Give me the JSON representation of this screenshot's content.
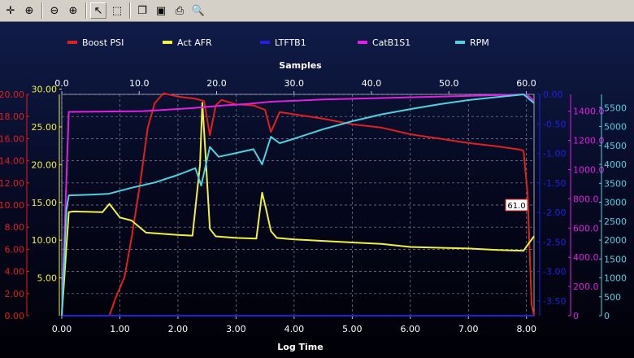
{
  "toolbar": {
    "buttons": [
      {
        "name": "pan-icon",
        "glyph": "✛"
      },
      {
        "name": "zoom-area-icon",
        "glyph": "⊕"
      },
      {
        "name": "zoom-out-icon",
        "glyph": "⊖"
      },
      {
        "name": "zoom-in-icon",
        "glyph": "⊕"
      },
      {
        "name": "pointer-icon",
        "glyph": "↖"
      },
      {
        "name": "select-box-icon",
        "glyph": "⬚"
      },
      {
        "name": "copy-icon",
        "glyph": "❐"
      },
      {
        "name": "save-icon",
        "glyph": "▣"
      },
      {
        "name": "print-icon",
        "glyph": "⎙"
      },
      {
        "name": "print-preview-icon",
        "glyph": "🔍"
      }
    ]
  },
  "chart_data": {
    "type": "line",
    "xlabel": "Log Time",
    "x2label": "Samples",
    "xlim": [
      0,
      8.13
    ],
    "x2lim": [
      0,
      61.0
    ],
    "xticks": [
      "0.00",
      "1.00",
      "2.00",
      "3.00",
      "4.00",
      "5.00",
      "6.00",
      "7.00",
      "8.00"
    ],
    "x2ticks": [
      "0.0",
      "10.0",
      "20.0",
      "30.0",
      "40.0",
      "50.0",
      "60.0"
    ],
    "cursor_label": "61.0",
    "grid": true,
    "legend_position": "top",
    "series": [
      {
        "name": "Boost PSI",
        "color": "#e02020",
        "ylim": [
          0,
          20
        ],
        "yticks": [
          "0.00",
          "2.00",
          "4.00",
          "6.00",
          "8.00",
          "10.00",
          "12.00",
          "14.00",
          "16.00",
          "18.00",
          "20.00"
        ],
        "points": [
          [
            0,
            0
          ],
          [
            0.82,
            0
          ],
          [
            0.92,
            1.5
          ],
          [
            1.08,
            3.5
          ],
          [
            1.2,
            7
          ],
          [
            1.35,
            12
          ],
          [
            1.48,
            17
          ],
          [
            1.6,
            19.2
          ],
          [
            1.75,
            20.1
          ],
          [
            2.0,
            19.8
          ],
          [
            2.3,
            19.6
          ],
          [
            2.45,
            19.4
          ],
          [
            2.55,
            16.3
          ],
          [
            2.65,
            19
          ],
          [
            2.75,
            19.5
          ],
          [
            3.0,
            19.1
          ],
          [
            3.3,
            19
          ],
          [
            3.5,
            18.6
          ],
          [
            3.6,
            16.6
          ],
          [
            3.75,
            18.4
          ],
          [
            4.0,
            18.2
          ],
          [
            4.5,
            17.8
          ],
          [
            5.0,
            17.3
          ],
          [
            5.5,
            17.0
          ],
          [
            6.0,
            16.4
          ],
          [
            6.5,
            16.0
          ],
          [
            7.0,
            15.6
          ],
          [
            7.5,
            15.3
          ],
          [
            7.9,
            15.0
          ],
          [
            7.95,
            14.9
          ],
          [
            8.02,
            11
          ],
          [
            8.06,
            5
          ],
          [
            8.09,
            1
          ],
          [
            8.13,
            0
          ]
        ]
      },
      {
        "name": "Act AFR",
        "color": "#f0f040",
        "ylim": [
          0,
          29.3
        ],
        "yticks": [
          "5.00",
          "10.00",
          "15.00",
          "20.00",
          "25.00",
          "30.00"
        ],
        "points": [
          [
            0,
            0
          ],
          [
            0.12,
            13.7
          ],
          [
            0.2,
            13.8
          ],
          [
            0.7,
            13.7
          ],
          [
            0.82,
            14.8
          ],
          [
            1.0,
            13
          ],
          [
            1.2,
            12.6
          ],
          [
            1.45,
            11
          ],
          [
            2.0,
            10.7
          ],
          [
            2.25,
            10.6
          ],
          [
            2.38,
            20
          ],
          [
            2.42,
            28.2
          ],
          [
            2.47,
            22
          ],
          [
            2.55,
            11.5
          ],
          [
            2.65,
            10.5
          ],
          [
            3.0,
            10.3
          ],
          [
            3.35,
            10.2
          ],
          [
            3.45,
            16.3
          ],
          [
            3.52,
            14
          ],
          [
            3.6,
            11.2
          ],
          [
            3.7,
            10.3
          ],
          [
            4.0,
            10.1
          ],
          [
            4.5,
            9.9
          ],
          [
            5.0,
            9.7
          ],
          [
            5.5,
            9.5
          ],
          [
            6.0,
            9.1
          ],
          [
            6.5,
            9.0
          ],
          [
            7.0,
            8.9
          ],
          [
            7.5,
            8.7
          ],
          [
            7.95,
            8.6
          ],
          [
            8.05,
            9.7
          ],
          [
            8.13,
            10.5
          ]
        ]
      },
      {
        "name": "LTFTB1",
        "color": "#2020e0",
        "ylim": [
          -3.75,
          0
        ],
        "yticks": [
          "0.00",
          "-0.50",
          "-1.00",
          "-1.50",
          "-2.00",
          "-2.50",
          "-3.00",
          "-3.50"
        ],
        "points": [
          [
            0,
            -3.75
          ],
          [
            8.13,
            -3.75
          ]
        ]
      },
      {
        "name": "CatB1S1",
        "color": "#e020e0",
        "ylim": [
          0,
          1515
        ],
        "yticks": [
          "0",
          "200.0",
          "400.0",
          "600.0",
          "800.0",
          "1000.0",
          "1200.0",
          "1400.0"
        ],
        "points": [
          [
            0,
            0
          ],
          [
            0.05,
            600
          ],
          [
            0.12,
            1395
          ],
          [
            1.4,
            1400
          ],
          [
            2.2,
            1420
          ],
          [
            2.8,
            1440
          ],
          [
            3.2,
            1450
          ],
          [
            3.6,
            1465
          ],
          [
            4.5,
            1480
          ],
          [
            5.5,
            1490
          ],
          [
            6.5,
            1500
          ],
          [
            7.5,
            1510
          ],
          [
            7.95,
            1515
          ],
          [
            8.05,
            1500
          ],
          [
            8.13,
            1470
          ]
        ]
      },
      {
        "name": "RPM",
        "color": "#50d0e0",
        "ylim": [
          0,
          5850
        ],
        "yticks": [
          "0",
          "500",
          "1000",
          "1500",
          "2000",
          "2500",
          "3000",
          "3500",
          "4000",
          "4500",
          "5000",
          "5500"
        ],
        "points": [
          [
            0,
            0
          ],
          [
            0.08,
            2800
          ],
          [
            0.12,
            3180
          ],
          [
            0.5,
            3200
          ],
          [
            0.8,
            3220
          ],
          [
            1.2,
            3380
          ],
          [
            1.6,
            3520
          ],
          [
            2.0,
            3720
          ],
          [
            2.3,
            3900
          ],
          [
            2.4,
            3440
          ],
          [
            2.55,
            4460
          ],
          [
            2.7,
            4200
          ],
          [
            3.0,
            4300
          ],
          [
            3.3,
            4400
          ],
          [
            3.45,
            4000
          ],
          [
            3.6,
            4730
          ],
          [
            3.75,
            4560
          ],
          [
            4.0,
            4680
          ],
          [
            4.5,
            4930
          ],
          [
            5.0,
            5140
          ],
          [
            5.5,
            5320
          ],
          [
            6.0,
            5460
          ],
          [
            6.5,
            5590
          ],
          [
            7.0,
            5700
          ],
          [
            7.5,
            5780
          ],
          [
            7.95,
            5850
          ],
          [
            8.13,
            5620
          ]
        ]
      }
    ]
  }
}
